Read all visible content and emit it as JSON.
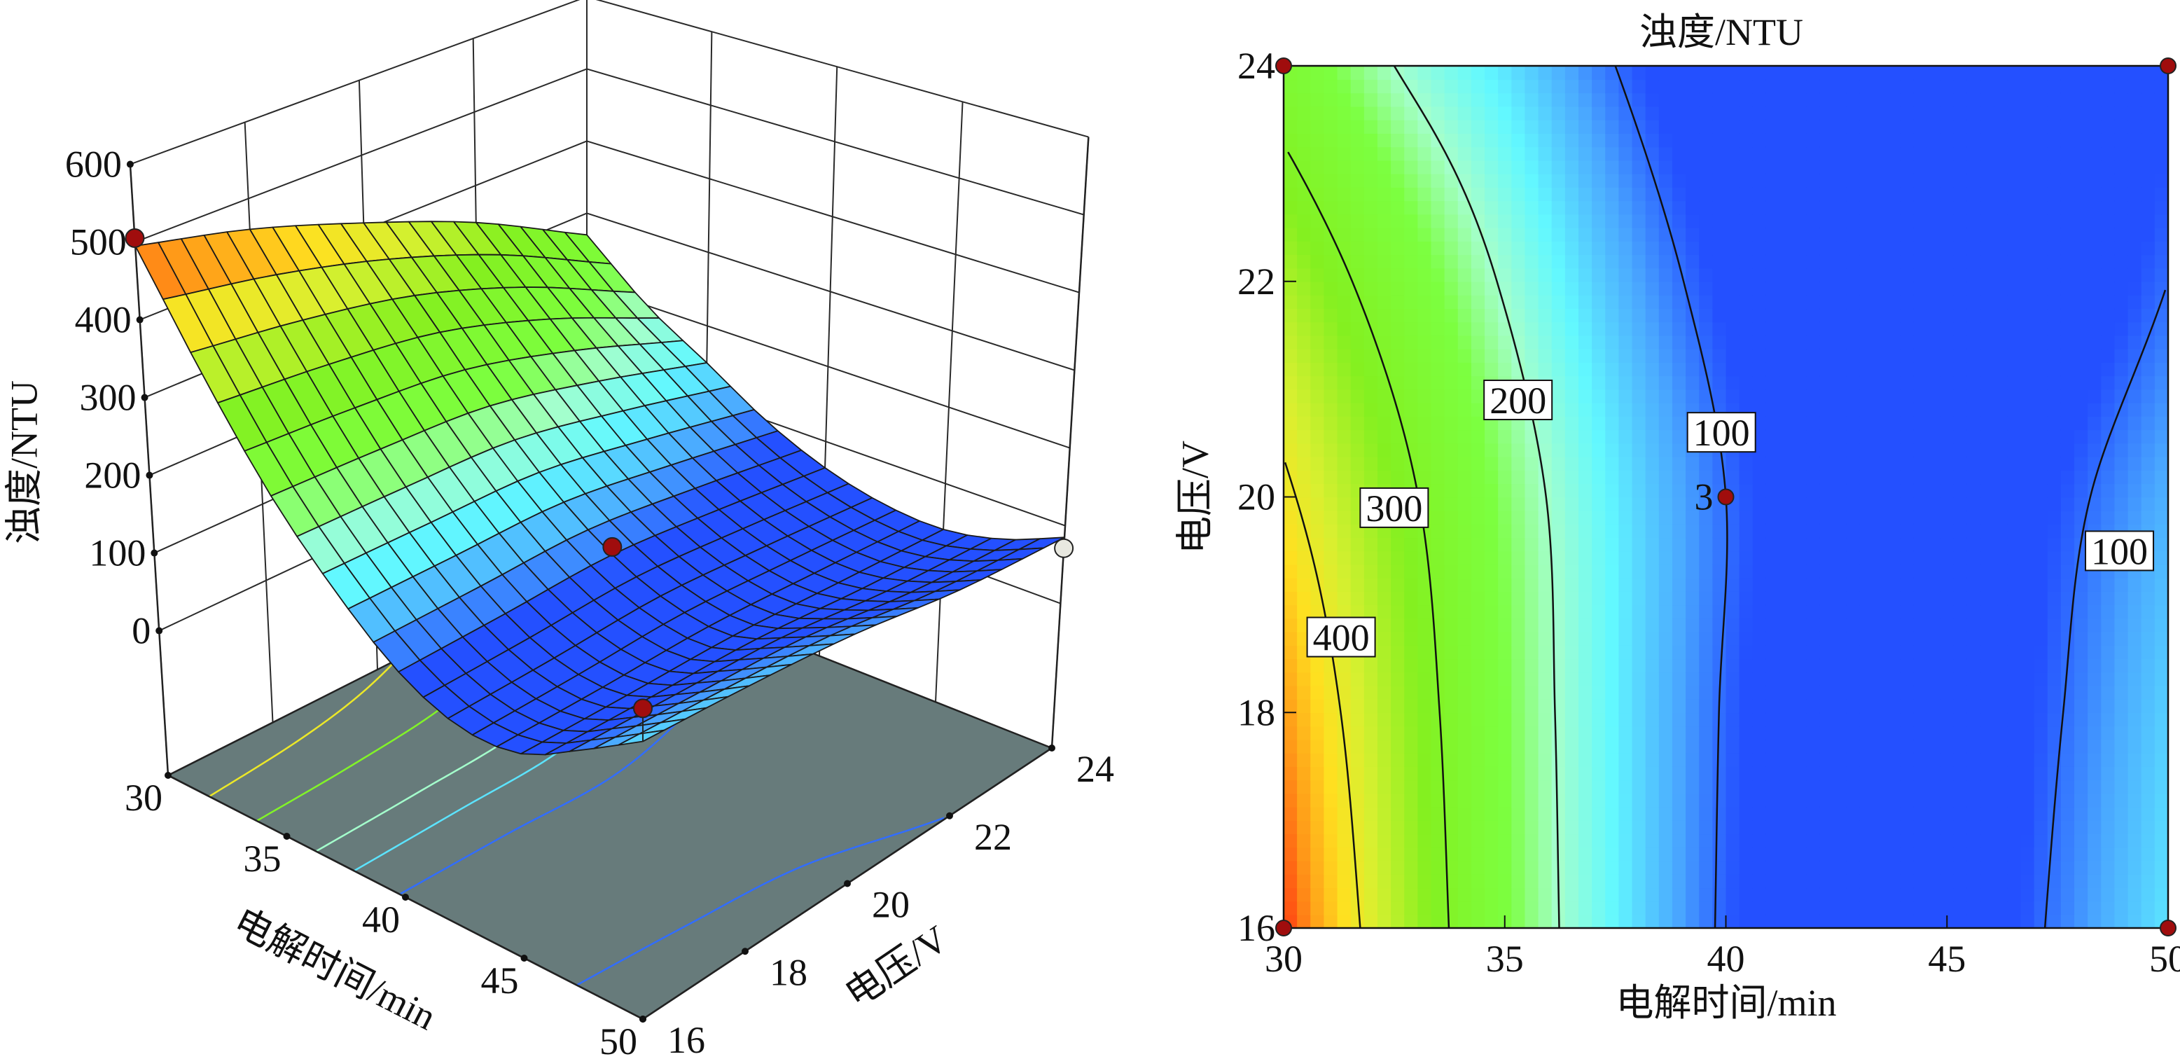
{
  "chart_data": [
    {
      "type": "surface3d",
      "xlabel": "电解时间/min",
      "ylabel": "电压/V",
      "zlabel": "浊度/NTU",
      "x_ticks": [
        "30",
        "35",
        "40",
        "45",
        "50"
      ],
      "y_ticks": [
        "16",
        "18",
        "20",
        "22",
        "24"
      ],
      "z_ticks": [
        "0",
        "100",
        "200",
        "300",
        "400",
        "500",
        "600"
      ],
      "xlim": [
        30,
        50
      ],
      "ylim": [
        16,
        24
      ],
      "zlim": [
        0,
        600
      ],
      "grid": {
        "t": [
          30,
          32.5,
          35,
          37.5,
          40,
          42.5,
          45,
          47.5,
          50
        ],
        "V": [
          16,
          18,
          20,
          22,
          24
        ],
        "z": [
          [
            495,
            360,
            245,
            160,
            95,
            62,
            65,
            105,
            150
          ],
          [
            460,
            345,
            240,
            158,
            97,
            64,
            62,
            98,
            140
          ],
          [
            410,
            320,
            230,
            155,
            100,
            68,
            60,
            90,
            125
          ],
          [
            350,
            270,
            195,
            130,
            85,
            58,
            50,
            68,
            100
          ],
          [
            270,
            200,
            150,
            100,
            65,
            45,
            40,
            55,
            85
          ]
        ]
      },
      "floor_contour_levels": [
        400,
        300,
        200,
        150,
        100
      ],
      "floor_color": "#677b7b",
      "design_points": [
        {
          "t": 30,
          "V": 16,
          "z": 505,
          "position": "above"
        },
        {
          "t": 40,
          "V": 20,
          "z": 110,
          "position": "above"
        },
        {
          "t": 50,
          "V": 16,
          "z": 190,
          "position": "above"
        },
        {
          "t": 50,
          "V": 24,
          "z": 71,
          "position": "below"
        }
      ]
    },
    {
      "type": "contour",
      "title": "浊度/NTU",
      "xlabel": "电解时间/min",
      "ylabel": "电压/V",
      "x_ticks": [
        "30",
        "35",
        "40",
        "45",
        "50"
      ],
      "y_ticks": [
        "16",
        "18",
        "20",
        "22",
        "24"
      ],
      "xlim": [
        30,
        50
      ],
      "ylim": [
        16,
        24
      ],
      "levels": [
        400,
        300,
        200,
        100
      ],
      "contour_labels": [
        {
          "text": "400",
          "t": 31.3,
          "V": 18.7
        },
        {
          "text": "300",
          "t": 32.5,
          "V": 19.9
        },
        {
          "text": "200",
          "t": 35.3,
          "V": 20.9
        },
        {
          "text": "100",
          "t": 39.9,
          "V": 20.6
        },
        {
          "text": "100",
          "t": 48.9,
          "V": 19.5
        }
      ],
      "design_points": [
        {
          "t": 30,
          "V": 24
        },
        {
          "t": 50,
          "V": 24
        },
        {
          "t": 30,
          "V": 16
        },
        {
          "t": 50,
          "V": 16
        },
        {
          "t": 40,
          "V": 20,
          "label": "3"
        }
      ]
    }
  ],
  "colormap": [
    [
      40,
      "#2450ff"
    ],
    [
      90,
      "#2450ff"
    ],
    [
      120,
      "#4aa8ff"
    ],
    [
      160,
      "#62f8ff"
    ],
    [
      200,
      "#a4ffcc"
    ],
    [
      240,
      "#7cff40"
    ],
    [
      320,
      "#84f020"
    ],
    [
      380,
      "#d8f030"
    ],
    [
      420,
      "#ffe020"
    ],
    [
      460,
      "#ff9818"
    ],
    [
      500,
      "#ff2a10"
    ]
  ],
  "point_color": "#a00d0d",
  "point_below_color": "#e8e8e0"
}
